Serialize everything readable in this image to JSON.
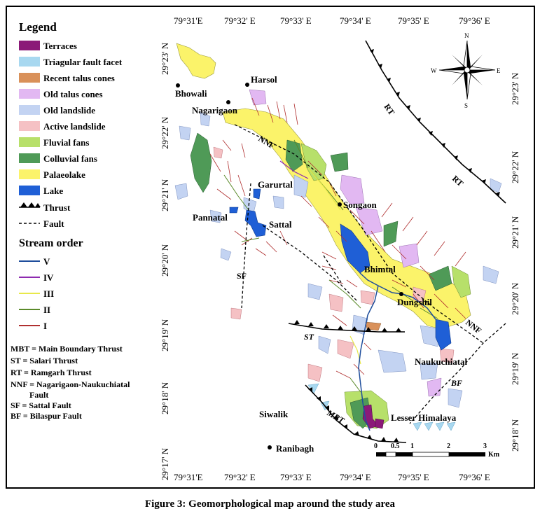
{
  "legend": {
    "title": "Legend",
    "items": [
      {
        "label": "Terraces",
        "color": "#8b1a78",
        "kind": "swatch"
      },
      {
        "label": "Triagular fault facet",
        "color": "#a8d8f0",
        "kind": "swatch"
      },
      {
        "label": "Recent talus cones",
        "color": "#d9915a",
        "kind": "swatch"
      },
      {
        "label": "Old talus cones",
        "color": "#e2b8f2",
        "kind": "swatch"
      },
      {
        "label": "Old landslide",
        "color": "#c3d3f2",
        "kind": "swatch"
      },
      {
        "label": "Active landslide",
        "color": "#f5c1c4",
        "kind": "swatch"
      },
      {
        "label": "Fluvial fans",
        "color": "#b7e06a",
        "kind": "swatch"
      },
      {
        "label": "Colluvial fans",
        "color": "#4f9a57",
        "kind": "swatch"
      },
      {
        "label": "Palaeolake",
        "color": "#fbf36a",
        "kind": "swatch"
      },
      {
        "label": "Lake",
        "color": "#1f5fd6",
        "kind": "swatch"
      },
      {
        "label": "Thrust",
        "color": "#000000",
        "kind": "thrust"
      },
      {
        "label": "Fault",
        "color": "#000000",
        "kind": "fault"
      }
    ],
    "stream_title": "Stream order",
    "streams": [
      {
        "label": "V",
        "color": "#1f4e9c"
      },
      {
        "label": "IV",
        "color": "#8e2bb0"
      },
      {
        "label": "III",
        "color": "#e8e84a"
      },
      {
        "label": "II",
        "color": "#5a8a2a"
      },
      {
        "label": "I",
        "color": "#b03030"
      }
    ],
    "abbreviations": [
      "MBT = Main Boundary Thrust",
      "ST = Salari Thrust",
      "RT = Ramgarh Thrust",
      "NNF = Nagarigaon-Naukuchiatal",
      "         Fault",
      "SF = Sattal Fault",
      "BF = Bilaspur Fault"
    ]
  },
  "axes": {
    "top_lon": [
      "79°31'E",
      "79°32' E",
      "79°33' E",
      "79°34' E",
      "79°35' E",
      "79°36' E"
    ],
    "bottom_lon": [
      "79°31'E",
      "79°32' E",
      "79°33' E",
      "79°34' E",
      "79°35' E",
      "79°36' E"
    ],
    "left_lat": [
      "29°23' N",
      "29°22' N",
      "29°21' N",
      "29°20' N",
      "29°19' N",
      "29°18' N",
      "29°17' N"
    ],
    "right_lat": [
      "29°23' N",
      "29°22' N",
      "29°21' N",
      "29°20' N",
      "29°19' N",
      "29°18' N"
    ]
  },
  "places": [
    "Bhowali",
    "Harsol",
    "Nagarigaon",
    "Garurtal",
    "Songaon",
    "Pannatal",
    "Sattal",
    "Bhimtal",
    "Dungshil",
    "Naukuchiatal",
    "Siwalik",
    "Lesser Himalaya",
    "Ranibagh"
  ],
  "fault_labels": [
    "RT",
    "RT",
    "NNF",
    "NNF",
    "SF",
    "ST",
    "MBT",
    "BF"
  ],
  "compass": {
    "n": "N",
    "s": "S",
    "e": "E",
    "w": "W"
  },
  "scale": {
    "ticks": [
      "0",
      "0.5",
      "1",
      "2",
      "3"
    ],
    "unit": "Km"
  },
  "caption": "Figure 3: Geomorphological map around the study area"
}
